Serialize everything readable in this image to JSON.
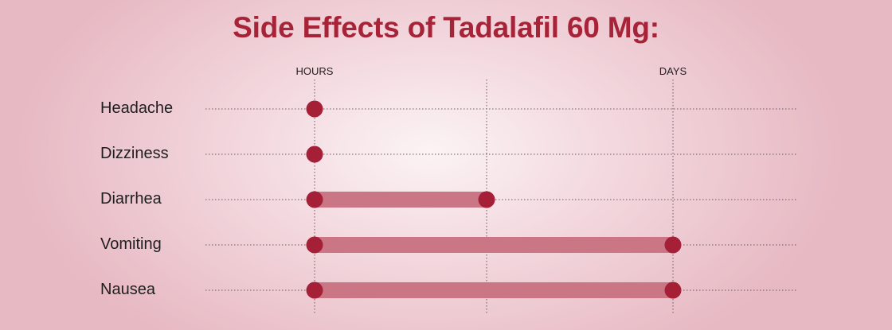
{
  "chart_data": {
    "type": "bar",
    "title": "Side Effects of Tadalafil 60 Mg:",
    "ticks": [
      "HOURS",
      "",
      "DAYS"
    ],
    "xlim": [
      0,
      2
    ],
    "categories": [
      "Headache",
      "Dizziness",
      "Diarrhea",
      "Vomiting",
      "Nausea"
    ],
    "ranges": [
      {
        "start": 0,
        "end": 0
      },
      {
        "start": 0,
        "end": 0
      },
      {
        "start": 0,
        "end": 0.96
      },
      {
        "start": 0,
        "end": 2
      },
      {
        "start": 0,
        "end": 2
      }
    ],
    "colors": {
      "title": "#a72338",
      "dot": "#a51f36",
      "bar": "#cb7684",
      "grid": "#6b5a5e"
    }
  }
}
